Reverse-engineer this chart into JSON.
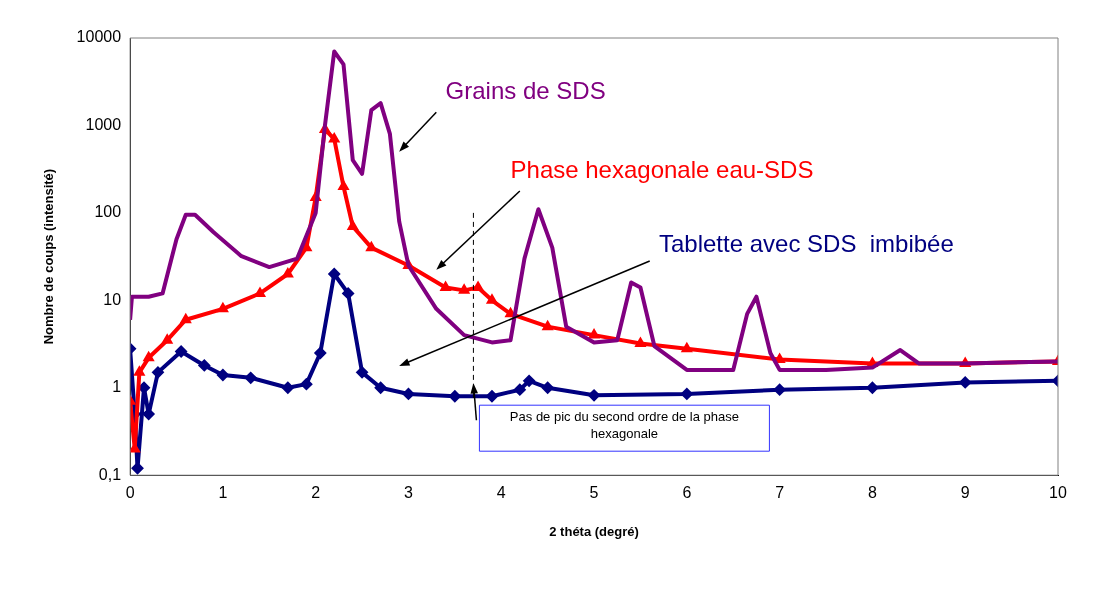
{
  "chart_data": {
    "type": "line",
    "xlabel": "2 théta (degré)",
    "ylabel": "Nombre de coups (intensité)",
    "log": "y",
    "grid": false,
    "legend": false,
    "xlim": [
      0,
      10
    ],
    "xticks": [
      0,
      1,
      2,
      3,
      4,
      5,
      6,
      7,
      8,
      9,
      10
    ],
    "ylim": [
      0.1,
      10000
    ],
    "yticks": [
      {
        "value": 0.1,
        "label": "0,1"
      },
      1,
      10,
      100,
      1000,
      10000
    ],
    "ref_lines": [
      {
        "axis": "x",
        "value": 3.7,
        "color": "#000000",
        "line_style": "dashed"
      }
    ],
    "annotations": [
      "Pas de pic du second ordre de la phase hexagonale"
    ],
    "series": [
      {
        "name": "Grains de SDS",
        "color": "#800080",
        "marker": "none",
        "x": [
          0,
          0.02,
          0.2,
          0.35,
          0.5,
          0.6,
          0.7,
          0.9,
          1.2,
          1.5,
          1.8,
          2.0,
          2.1,
          2.2,
          2.3,
          2.4,
          2.5,
          2.6,
          2.7,
          2.8,
          2.9,
          3.0,
          3.3,
          3.6,
          3.9,
          4.1,
          4.25,
          4.4,
          4.55,
          4.7,
          5.0,
          5.25,
          5.4,
          5.5,
          5.65,
          6.0,
          6.5,
          6.65,
          6.75,
          6.9,
          7.0,
          7.5,
          8.0,
          8.3,
          8.5,
          9.0,
          10
        ],
        "values": [
          6,
          11,
          11,
          12,
          50,
          95,
          95,
          60,
          32,
          24,
          30,
          100,
          1000,
          7000,
          5000,
          400,
          280,
          1500,
          1800,
          800,
          80,
          25,
          8,
          4,
          3.3,
          3.5,
          30,
          110,
          40,
          5,
          3.3,
          3.5,
          16,
          14,
          3,
          1.6,
          1.6,
          7,
          11,
          2.5,
          1.6,
          1.6,
          1.7,
          2.7,
          1.9,
          1.9,
          2.0
        ]
      },
      {
        "name": "Phase hexagonale eau-SDS",
        "color": "#ff0000",
        "marker": "triangle",
        "x": [
          0,
          0.05,
          0.1,
          0.2,
          0.4,
          0.6,
          1.0,
          1.4,
          1.7,
          1.9,
          2.0,
          2.1,
          2.2,
          2.3,
          2.4,
          2.6,
          3.0,
          3.4,
          3.6,
          3.75,
          3.9,
          4.1,
          4.5,
          5.0,
          5.5,
          6.0,
          7.0,
          8.0,
          9.0,
          10
        ],
        "values": [
          0.7,
          0.2,
          1.5,
          2.2,
          3.5,
          6,
          8,
          12,
          20,
          40,
          150,
          900,
          700,
          200,
          70,
          40,
          25,
          14,
          13,
          14,
          10,
          7,
          5,
          4,
          3.2,
          2.8,
          2.1,
          1.9,
          1.9,
          2.0
        ]
      },
      {
        "name": "Tablette avec SDS  imbibée",
        "color": "#000080",
        "marker": "diamond",
        "x": [
          0,
          0.05,
          0.08,
          0.15,
          0.2,
          0.3,
          0.55,
          0.8,
          1.0,
          1.3,
          1.7,
          1.9,
          2.05,
          2.2,
          2.35,
          2.5,
          2.7,
          3.0,
          3.5,
          3.9,
          4.2,
          4.3,
          4.5,
          5.0,
          6.0,
          7.0,
          8.0,
          9.0,
          10
        ],
        "values": [
          2.8,
          0.5,
          0.12,
          1.0,
          0.5,
          1.5,
          2.6,
          1.8,
          1.4,
          1.3,
          1.0,
          1.1,
          2.5,
          20,
          12,
          1.5,
          1.0,
          0.85,
          0.8,
          0.8,
          0.95,
          1.2,
          1.0,
          0.82,
          0.85,
          0.95,
          1.0,
          1.15,
          1.2
        ]
      }
    ]
  }
}
